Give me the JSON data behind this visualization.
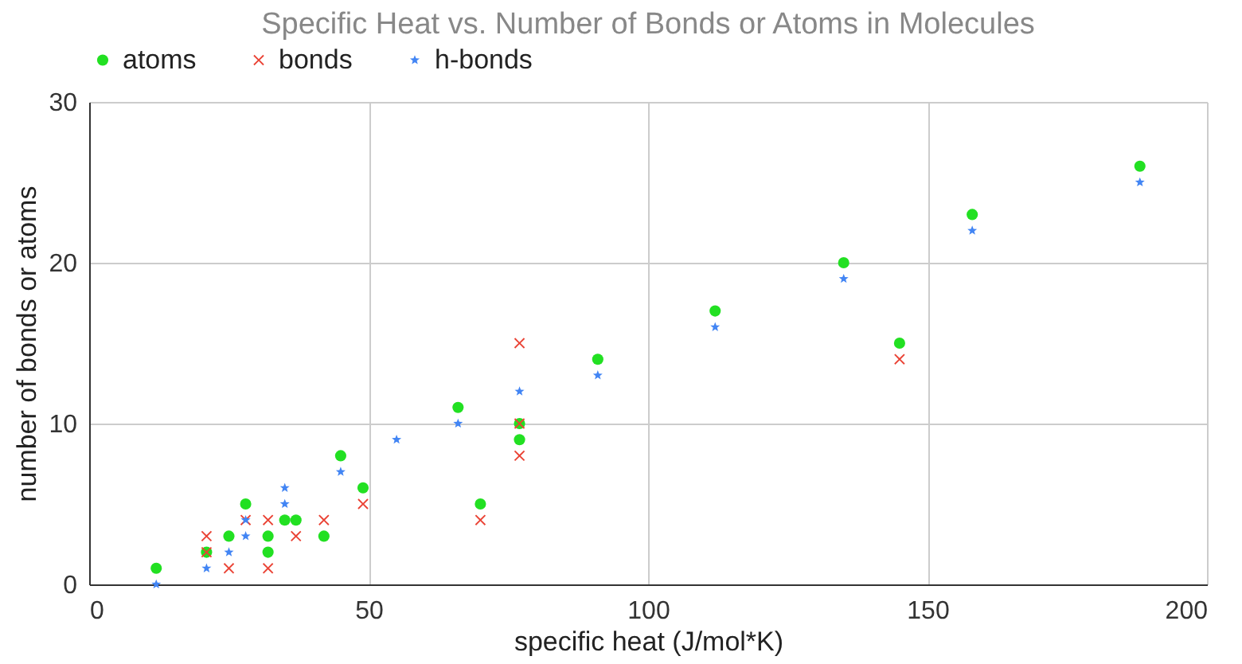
{
  "chart_data": {
    "type": "scatter",
    "title": "Specific Heat vs. Number of Bonds or Atoms in Molecules",
    "xlabel": "specific heat (J/mol*K)",
    "ylabel": "number of bonds or atoms",
    "xlim": [
      0,
      200
    ],
    "xticks": [
      0,
      50,
      100,
      150,
      200
    ],
    "ylim": [
      0,
      30
    ],
    "yticks": [
      0,
      10,
      20,
      30
    ],
    "grid": true,
    "legend": "top",
    "series": [
      {
        "name": "atoms",
        "color": "#22e022",
        "marker": "circle",
        "x": [
          12,
          21,
          25,
          28,
          32,
          32,
          35,
          37,
          42,
          45,
          49,
          66,
          70,
          77,
          77,
          91,
          112,
          135,
          145,
          158,
          188
        ],
        "values": [
          1,
          2,
          3,
          5,
          2,
          3,
          4,
          4,
          3,
          8,
          6,
          11,
          5,
          10,
          9,
          14,
          17,
          20,
          15,
          23,
          26
        ]
      },
      {
        "name": "bonds",
        "color": "#ea4335",
        "marker": "cross",
        "x": [
          21,
          21,
          25,
          28,
          32,
          32,
          37,
          42,
          49,
          70,
          77,
          77,
          77,
          145
        ],
        "values": [
          3,
          2,
          1,
          4,
          1,
          4,
          3,
          4,
          5,
          4,
          15,
          10,
          8,
          14
        ]
      },
      {
        "name": "h-bonds",
        "color": "#4285f4",
        "marker": "star",
        "x": [
          12,
          21,
          25,
          28,
          28,
          35,
          35,
          45,
          55,
          66,
          77,
          91,
          112,
          135,
          158,
          188
        ],
        "values": [
          0,
          1,
          2,
          4,
          3,
          6,
          5,
          7,
          9,
          10,
          12,
          13,
          16,
          19,
          22,
          25
        ]
      }
    ]
  }
}
